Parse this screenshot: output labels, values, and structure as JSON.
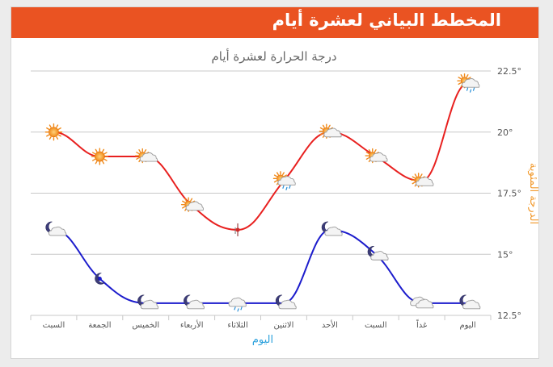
{
  "header": {
    "title": "المخطط البياني لعشرة أيام"
  },
  "chart_data": {
    "type": "line",
    "title": "درجة الحرارة لعشرة أيام",
    "xlabel": "اليوم",
    "ylabel": "الدرجة المئوية",
    "categories": [
      "السبت",
      "الجمعة",
      "الخميس",
      "الأربعاء",
      "الثلاثاء",
      "الاثنين",
      "الأحد",
      "السبت",
      "غداً",
      "اليوم"
    ],
    "ylim": [
      12.5,
      22.5
    ],
    "ytick_labels": [
      "12.5°",
      "15°",
      "17.5°",
      "20°",
      "22.5°"
    ],
    "yticks": [
      12.5,
      15,
      17.5,
      20,
      22.5
    ],
    "y_axis_position": "right",
    "grid": true,
    "series": [
      {
        "color": "#e8201f",
        "values": [
          20,
          19,
          19,
          17,
          16,
          18,
          20,
          19,
          18,
          22
        ],
        "icons": [
          "sun-icon",
          "sun-icon",
          "sun-cloud-icon",
          "sun-cloud-icon",
          "rain-icon",
          "sun-rain-icon",
          "sun-cloud-icon",
          "sun-cloud-icon",
          "sun-cloud-icon",
          "sun-rain-icon"
        ]
      },
      {
        "color": "#1c1ccc",
        "values": [
          16,
          14,
          13,
          13,
          13,
          13,
          16,
          15,
          13,
          13
        ],
        "icons": [
          "moon-cloud-icon",
          "moon-icon",
          "moon-cloud-icon",
          "moon-cloud-icon",
          "cloud-rain-icon",
          "moon-cloud-icon",
          "moon-cloud-icon",
          "moon-cloud-icon",
          "cloud-icon",
          "moon-cloud-icon"
        ]
      }
    ]
  }
}
